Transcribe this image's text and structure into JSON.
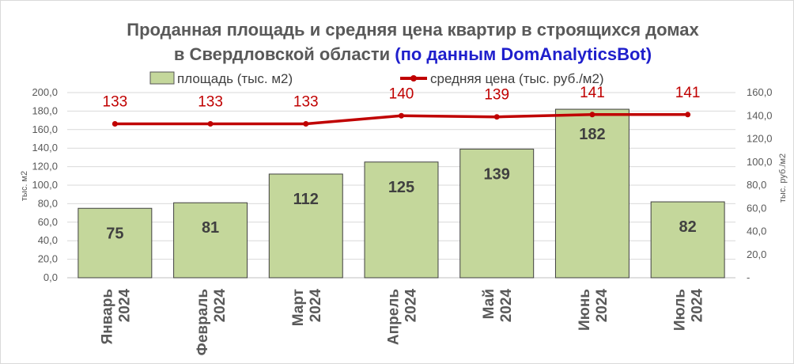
{
  "chart_data": {
    "type": "bar+line",
    "title_line1": "Проданная площадь и средняя цена квартир в строящихся домах",
    "title_line2_main": "в Свердловской области ",
    "title_line2_highlight": "(по данным DomAnalyticsBot)",
    "highlight_color": "#1f1fcc",
    "categories": [
      {
        "month": "Январь",
        "year": "2024"
      },
      {
        "month": "Февраль",
        "year": "2024"
      },
      {
        "month": "Март",
        "year": "2024"
      },
      {
        "month": "Апрель",
        "year": "2024"
      },
      {
        "month": "Май",
        "year": "2024"
      },
      {
        "month": "Июнь",
        "year": "2024"
      },
      {
        "month": "Июль",
        "year": "2024"
      }
    ],
    "series": [
      {
        "name": "площадь (тыс. м2)",
        "type": "bar",
        "axis": "left",
        "color": "#c4d79b",
        "values": [
          75,
          81,
          112,
          125,
          139,
          182,
          82
        ]
      },
      {
        "name": "средняя цена (тыс. руб./м2)",
        "type": "line",
        "axis": "right",
        "color": "#c00000",
        "values": [
          133,
          133,
          133,
          140,
          139,
          141,
          141
        ]
      }
    ],
    "left_axis": {
      "label": "тыс. м2",
      "range": [
        0,
        200
      ],
      "ticks": [
        "0,0",
        "20,0",
        "40,0",
        "60,0",
        "80,0",
        "100,0",
        "120,0",
        "140,0",
        "160,0",
        "180,0",
        "200,0"
      ]
    },
    "right_axis": {
      "label": "тыс. руб./м2",
      "range": [
        0,
        160
      ],
      "ticks": [
        "-",
        "20,0",
        "40,0",
        "60,0",
        "80,0",
        "100,0",
        "120,0",
        "140,0",
        "160,0"
      ]
    },
    "grid": true,
    "legend_position": "top"
  }
}
